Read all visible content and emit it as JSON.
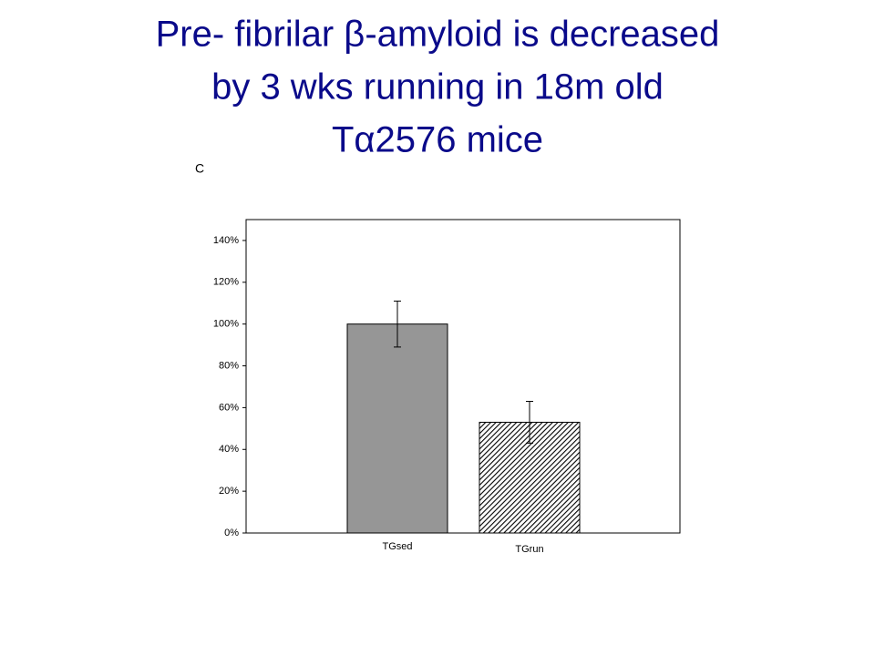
{
  "chart_data": {
    "type": "bar",
    "title": [
      "Pre- fibrilar β-amyloid is decreased",
      "by 3 wks running in 18m old",
      "Tα2576 mice"
    ],
    "panel_label": "C",
    "categories": [
      "TGsed",
      "TGrun"
    ],
    "values": [
      100,
      53
    ],
    "errors": [
      11,
      10
    ],
    "colors": [
      "#969696",
      "#000000"
    ],
    "hatch": [
      false,
      true
    ],
    "ylim": [
      0,
      150
    ],
    "yticks": [
      {
        "value": 0,
        "label": "0%"
      },
      {
        "value": 20,
        "label": "20%"
      },
      {
        "value": 40,
        "label": "40%"
      },
      {
        "value": 60,
        "label": "60%"
      },
      {
        "value": 80,
        "label": "80%"
      },
      {
        "value": 100,
        "label": "100%"
      },
      {
        "value": 120,
        "label": "120%"
      },
      {
        "value": 140,
        "label": "140%"
      }
    ],
    "grid": false
  }
}
